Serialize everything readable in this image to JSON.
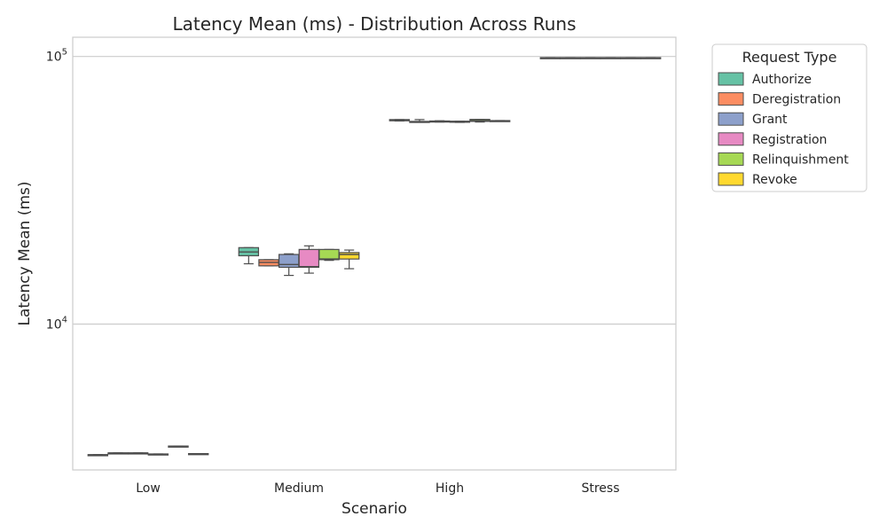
{
  "chart_data": {
    "type": "box",
    "title": "Latency Mean (ms) - Distribution Across Runs",
    "xlabel": "Scenario",
    "ylabel": "Latency Mean (ms)",
    "yscale": "log",
    "ylim": [
      2850,
      118000
    ],
    "yticks": [
      {
        "value": 10000,
        "base": "10",
        "exp": "4"
      },
      {
        "value": 100000,
        "base": "10",
        "exp": "5"
      }
    ],
    "grid": "horizontal",
    "legend_title": "Request Type",
    "legend_position": "outside-right",
    "categories": [
      "Low",
      "Medium",
      "High",
      "Stress"
    ],
    "series": [
      {
        "name": "Authorize",
        "color": "#66c2a5",
        "boxes": [
          {
            "min": 3240,
            "q1": 3240,
            "median": 3245,
            "q3": 3250,
            "max": 3250
          },
          {
            "min": 16800,
            "q1": 18000,
            "median": 18600,
            "q3": 19300,
            "max": 19300
          },
          {
            "min": 57400,
            "q1": 57500,
            "median": 57700,
            "q3": 58100,
            "max": 58100
          },
          {
            "min": 98800,
            "q1": 98800,
            "median": 98900,
            "q3": 99000,
            "max": 99000
          }
        ]
      },
      {
        "name": "Deregistration",
        "color": "#fc8d62",
        "boxes": [
          {
            "min": 3290,
            "q1": 3290,
            "median": 3295,
            "q3": 3300,
            "max": 3300
          },
          {
            "min": 16500,
            "q1": 16500,
            "median": 17000,
            "q3": 17400,
            "max": 17400
          },
          {
            "min": 56900,
            "q1": 56900,
            "median": 57000,
            "q3": 57200,
            "max": 58100
          },
          {
            "min": 98800,
            "q1": 98800,
            "median": 98900,
            "q3": 99000,
            "max": 99000
          }
        ]
      },
      {
        "name": "Grant",
        "color": "#8da0cb",
        "boxes": [
          {
            "min": 3290,
            "q1": 3290,
            "median": 3295,
            "q3": 3300,
            "max": 3300
          },
          {
            "min": 15200,
            "q1": 16300,
            "median": 16700,
            "q3": 18200,
            "max": 18300
          },
          {
            "min": 56900,
            "q1": 57000,
            "median": 57100,
            "q3": 57400,
            "max": 57500
          },
          {
            "min": 98800,
            "q1": 98800,
            "median": 98900,
            "q3": 99000,
            "max": 99000
          }
        ]
      },
      {
        "name": "Registration",
        "color": "#e78ac3",
        "boxes": [
          {
            "min": 3260,
            "q1": 3260,
            "median": 3265,
            "q3": 3270,
            "max": 3270
          },
          {
            "min": 15500,
            "q1": 16300,
            "median": 16400,
            "q3": 19000,
            "max": 19600
          },
          {
            "min": 56700,
            "q1": 56800,
            "median": 56900,
            "q3": 57300,
            "max": 57300
          },
          {
            "min": 98800,
            "q1": 98800,
            "median": 98900,
            "q3": 99000,
            "max": 99000
          }
        ]
      },
      {
        "name": "Relinquishment",
        "color": "#a6d854",
        "boxes": [
          {
            "min": 3480,
            "q1": 3480,
            "median": 3490,
            "q3": 3500,
            "max": 3500
          },
          {
            "min": 17300,
            "q1": 17400,
            "median": 17500,
            "q3": 19000,
            "max": 19000
          },
          {
            "min": 56900,
            "q1": 57200,
            "median": 57600,
            "q3": 58200,
            "max": 58200
          },
          {
            "min": 98800,
            "q1": 98800,
            "median": 98900,
            "q3": 99000,
            "max": 99000
          }
        ]
      },
      {
        "name": "Revoke",
        "color": "#ffd92f",
        "boxes": [
          {
            "min": 3270,
            "q1": 3270,
            "median": 3275,
            "q3": 3280,
            "max": 3280
          },
          {
            "min": 16100,
            "q1": 17500,
            "median": 18200,
            "q3": 18500,
            "max": 18900
          },
          {
            "min": 57400,
            "q1": 57400,
            "median": 57500,
            "q3": 57600,
            "max": 57600
          },
          {
            "min": 98800,
            "q1": 98800,
            "median": 98900,
            "q3": 99000,
            "max": 99000
          }
        ]
      }
    ]
  }
}
